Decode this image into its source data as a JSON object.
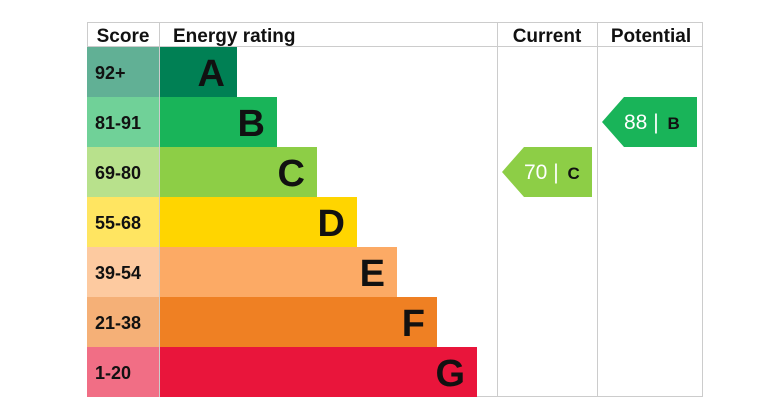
{
  "chart_data": {
    "type": "bar",
    "columns": {
      "score": "Score",
      "rating": "Energy rating",
      "current": "Current",
      "potential": "Potential"
    },
    "bands": [
      {
        "score": "92+",
        "letter": "A",
        "color": "#008054"
      },
      {
        "score": "81-91",
        "letter": "B",
        "color": "#19b459"
      },
      {
        "score": "69-80",
        "letter": "C",
        "color": "#8dce46"
      },
      {
        "score": "55-68",
        "letter": "D",
        "color": "#ffd500"
      },
      {
        "score": "39-54",
        "letter": "E",
        "color": "#fcaa65"
      },
      {
        "score": "21-38",
        "letter": "F",
        "color": "#ef8023"
      },
      {
        "score": "1-20",
        "letter": "G",
        "color": "#e9153b"
      }
    ],
    "current": {
      "value": 70,
      "separator": " | ",
      "letter": "C",
      "color": "#8dce46"
    },
    "potential": {
      "value": 88,
      "separator": " | ",
      "letter": "B",
      "color": "#19b459"
    }
  }
}
